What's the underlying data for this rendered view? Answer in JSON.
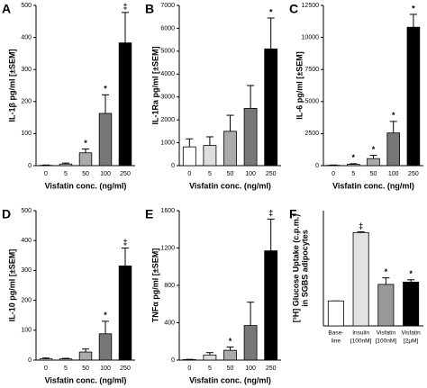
{
  "chart_data": [
    {
      "type": "bar",
      "panel_label": "A",
      "ylabel": [
        "IL-1β pg/ml [±SEM]"
      ],
      "xlabel": "Visfatin conc. (ng/ml)",
      "categories": [
        "0",
        "5",
        "50",
        "100",
        "250"
      ],
      "values": [
        1,
        5,
        40,
        163,
        383
      ],
      "errors": [
        1,
        3,
        12,
        58,
        95
      ],
      "significance": [
        null,
        null,
        "*",
        "*",
        "‡"
      ],
      "colors": [
        "#ffffff",
        "#dddddd",
        "#aaaaaa",
        "#777777",
        "#000000"
      ],
      "ylim": [
        0,
        500
      ],
      "yticks": [
        0,
        100,
        200,
        300,
        400,
        500
      ]
    },
    {
      "type": "bar",
      "panel_label": "B",
      "ylabel": [
        "IL-1Ra pg/ml [±SEM]"
      ],
      "xlabel": "Visfatin conc. (ng/ml)",
      "categories": [
        "0",
        "5",
        "50",
        "100",
        "250"
      ],
      "values": [
        820,
        880,
        1500,
        2500,
        5100
      ],
      "errors": [
        350,
        380,
        700,
        1000,
        1350
      ],
      "significance": [
        null,
        null,
        null,
        null,
        "*"
      ],
      "colors": [
        "#ffffff",
        "#dddddd",
        "#aaaaaa",
        "#777777",
        "#000000"
      ],
      "ylim": [
        0,
        7000
      ],
      "yticks": [
        0,
        1000,
        2000,
        3000,
        4000,
        5000,
        6000,
        7000
      ]
    },
    {
      "type": "bar",
      "panel_label": "C",
      "ylabel": [
        "IL-6 pg/ml [±SEM]"
      ],
      "xlabel": "Visfatin conc. (ng/ml)",
      "categories": [
        "0",
        "5",
        "50",
        "100",
        "250"
      ],
      "values": [
        30,
        100,
        550,
        2550,
        10800
      ],
      "errors": [
        20,
        50,
        250,
        900,
        1000
      ],
      "significance": [
        null,
        "*",
        "*",
        "*",
        "*"
      ],
      "colors": [
        "#ffffff",
        "#dddddd",
        "#aaaaaa",
        "#777777",
        "#000000"
      ],
      "ylim": [
        0,
        12500
      ],
      "yticks": [
        0,
        2500,
        5000,
        7500,
        10000,
        12500
      ]
    },
    {
      "type": "bar",
      "panel_label": "D",
      "ylabel": [
        "IL-10 pg/ml [±SEM]"
      ],
      "xlabel": "Visfatin conc. (ng/ml)",
      "categories": [
        "0",
        "5",
        "50",
        "100",
        "250"
      ],
      "values": [
        4,
        4,
        27,
        88,
        315
      ],
      "errors": [
        3,
        2,
        10,
        42,
        60
      ],
      "significance": [
        null,
        null,
        null,
        "*",
        "‡"
      ],
      "colors": [
        "#ffffff",
        "#dddddd",
        "#aaaaaa",
        "#777777",
        "#000000"
      ],
      "ylim": [
        0,
        500
      ],
      "yticks": [
        0,
        100,
        200,
        300,
        400,
        500
      ]
    },
    {
      "type": "bar",
      "panel_label": "E",
      "ylabel": [
        "TNFα pg/ml [±SEM]"
      ],
      "xlabel": "Visfatin conc. (ng/ml)",
      "categories": [
        "0",
        "5",
        "50",
        "100",
        "250"
      ],
      "values": [
        5,
        55,
        105,
        370,
        1170
      ],
      "errors": [
        3,
        25,
        35,
        250,
        340
      ],
      "significance": [
        null,
        null,
        "*",
        null,
        "‡"
      ],
      "colors": [
        "#ffffff",
        "#dddddd",
        "#aaaaaa",
        "#777777",
        "#000000"
      ],
      "ylim": [
        0,
        1600
      ],
      "yticks": [
        0,
        400,
        800,
        1200,
        1600
      ]
    },
    {
      "type": "bar",
      "panel_label": "F",
      "ylabel": [
        "[³H] Glucose Uptake (c.p.m.)",
        "in SGBS adipocytes"
      ],
      "categories": [
        [
          "Base-",
          "line"
        ],
        [
          "Insulin",
          "[100nM]"
        ],
        [
          "Visfatin",
          "[100nM]"
        ],
        [
          "Visfatin",
          "[2μM]"
        ]
      ],
      "values": [
        650,
        2430,
        1080,
        1140
      ],
      "errors": [
        0,
        20,
        170,
        60
      ],
      "significance": [
        null,
        "‡",
        "*",
        "*"
      ],
      "colors": [
        "#ffffff",
        "#e2e2e2",
        "#999999",
        "#000000"
      ],
      "ylim": [
        0,
        3000
      ]
    }
  ]
}
